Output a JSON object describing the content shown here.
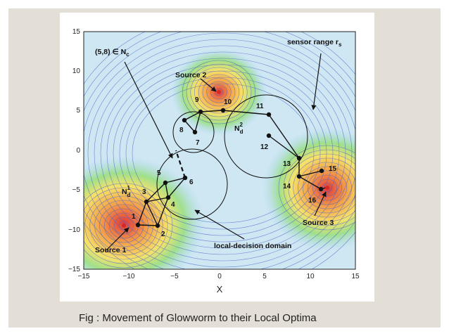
{
  "figure": {
    "x_axis_label": "X",
    "x_ticks": [
      "−15",
      "−10",
      "−5",
      "0",
      "5",
      "10",
      "15"
    ],
    "y_ticks": [
      "15",
      "10",
      "5",
      "0",
      "−5",
      "−10",
      "−15"
    ],
    "labels": {
      "source1": "Source 1",
      "source2": "Source 2",
      "source3": "Source 3",
      "sensor_range": "sensor range r",
      "sensor_range_sub": "s",
      "neighbor_set": "(5,8) ∈ N",
      "neighbor_set_sub": "c",
      "nd_main": "N",
      "nd1_sub": "d",
      "nd1_sup": "1",
      "nd2_sub": "d",
      "nd2_sup": "2",
      "local_decision": "local-decision domain"
    },
    "node_numbers": [
      "1",
      "2",
      "3",
      "4",
      "5",
      "6",
      "7",
      "8",
      "9",
      "10",
      "11",
      "12",
      "13",
      "14",
      "15",
      "16"
    ]
  },
  "caption": "Fig : Movement of Glowworm to their Local Optima",
  "colors": {
    "slide_bg": "#e3dfd7",
    "contour": "#4a63c9",
    "node": "#111111",
    "source_dot": "#d62a2a"
  }
}
